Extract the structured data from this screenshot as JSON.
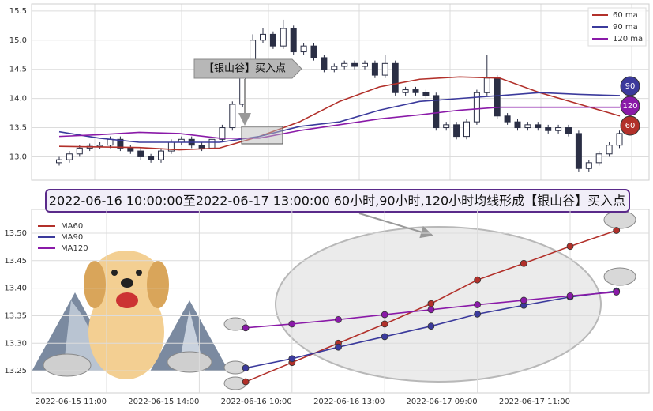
{
  "banner": "2022-06-16 10:00:00至2022-06-17 13:00:00 60小时,90小时,120小时均线形成【银山谷】买入点",
  "chart_data": [
    {
      "type": "candlestick",
      "annotation": "【银山谷】买入点",
      "ylim": [
        12.6,
        15.62
      ],
      "yticks": [
        {
          "value": 13,
          "label": "13.0"
        },
        13.5,
        {
          "value": 14,
          "label": "14.0"
        },
        14.5,
        {
          "value": 15,
          "label": "15.0"
        },
        15.5
      ],
      "grid": true,
      "legend": "upper right",
      "candles": {
        "open": [
          12.9,
          12.95,
          13.05,
          13.15,
          13.18,
          13.2,
          13.3,
          13.15,
          13.1,
          13.0,
          12.95,
          13.1,
          13.25,
          13.3,
          13.2,
          13.15,
          13.3,
          13.5,
          13.9,
          14.4,
          15.0,
          15.1,
          14.9,
          15.2,
          14.8,
          14.9,
          14.7,
          14.5,
          14.55,
          14.6,
          14.55,
          14.6,
          14.4,
          14.6,
          14.1,
          14.15,
          14.1,
          14.05,
          13.5,
          13.55,
          13.35,
          13.6,
          14.1,
          14.35,
          13.7,
          13.6,
          13.5,
          13.55,
          13.5,
          13.45,
          13.5,
          13.4,
          12.8,
          12.9,
          13.05,
          13.2
        ],
        "high": [
          13.0,
          13.1,
          13.2,
          13.23,
          13.25,
          13.35,
          13.35,
          13.2,
          13.15,
          13.05,
          13.15,
          13.3,
          13.35,
          13.35,
          13.25,
          13.35,
          13.55,
          13.95,
          14.45,
          15.1,
          15.2,
          15.15,
          15.35,
          15.25,
          14.95,
          14.95,
          14.75,
          14.6,
          14.65,
          14.65,
          14.65,
          14.65,
          14.75,
          14.65,
          14.2,
          14.2,
          14.15,
          14.1,
          13.6,
          13.6,
          13.65,
          14.15,
          14.75,
          14.4,
          13.75,
          13.65,
          13.6,
          13.6,
          13.55,
          13.55,
          13.55,
          13.45,
          12.95,
          13.1,
          13.25,
          13.45
        ],
        "low": [
          12.85,
          12.9,
          13.0,
          13.1,
          13.13,
          13.15,
          13.1,
          13.05,
          12.95,
          12.9,
          12.9,
          13.05,
          13.2,
          13.15,
          13.1,
          13.1,
          13.25,
          13.45,
          13.85,
          14.35,
          14.95,
          14.85,
          14.85,
          14.75,
          14.75,
          14.65,
          14.45,
          14.45,
          14.5,
          14.5,
          14.5,
          14.35,
          14.35,
          14.05,
          14.05,
          14.05,
          14.0,
          13.45,
          13.45,
          13.3,
          13.3,
          13.55,
          14.05,
          13.65,
          13.55,
          13.45,
          13.45,
          13.45,
          13.4,
          13.4,
          13.35,
          12.75,
          12.75,
          12.85,
          13.0,
          13.15
        ],
        "close": [
          12.95,
          13.05,
          13.15,
          13.18,
          13.2,
          13.3,
          13.15,
          13.1,
          13.0,
          12.95,
          13.1,
          13.25,
          13.3,
          13.2,
          13.15,
          13.3,
          13.5,
          13.9,
          14.4,
          15.0,
          15.1,
          14.9,
          15.2,
          14.8,
          14.9,
          14.7,
          14.5,
          14.55,
          14.6,
          14.55,
          14.6,
          14.4,
          14.6,
          14.1,
          14.15,
          14.1,
          14.05,
          13.5,
          13.55,
          13.35,
          13.6,
          14.1,
          14.35,
          13.7,
          13.6,
          13.5,
          13.55,
          13.5,
          13.45,
          13.5,
          13.4,
          12.8,
          12.9,
          13.05,
          13.2,
          13.4
        ]
      },
      "series": [
        {
          "name": "60 ma",
          "color": "#b2302a",
          "values": [
            13.18,
            13.17,
            13.16,
            13.12,
            13.15,
            13.35,
            13.6,
            13.95,
            14.2,
            14.33,
            14.37,
            14.35,
            14.1,
            13.9,
            13.7
          ]
        },
        {
          "name": "90 ma",
          "color": "#3b3a9c",
          "values": [
            13.43,
            13.32,
            13.25,
            13.25,
            13.25,
            13.35,
            13.52,
            13.6,
            13.8,
            13.95,
            14.0,
            14.05,
            14.1,
            14.07,
            14.05
          ]
        },
        {
          "name": "120 ma",
          "color": "#8a1aa8",
          "values": [
            13.35,
            13.38,
            13.42,
            13.4,
            13.32,
            13.32,
            13.45,
            13.55,
            13.65,
            13.72,
            13.8,
            13.85,
            13.85,
            13.85,
            13.85
          ]
        }
      ],
      "end_labels": [
        90,
        120,
        60
      ]
    },
    {
      "type": "line",
      "ylim": [
        13.21,
        13.543
      ],
      "yticks": [
        13.25,
        {
          "value": 13.3,
          "label": "13.30"
        },
        13.35,
        {
          "value": 13.4,
          "label": "13.40"
        },
        13.45,
        {
          "value": 13.5,
          "label": "13.50"
        }
      ],
      "grid": true,
      "legend": "upper left",
      "categories": [
        "2022-06-15 11:00",
        null,
        "2022-06-15 14:00",
        null,
        "2022-06-16 10:00",
        null,
        "2022-06-16 13:00",
        null,
        "2022-06-17 09:00",
        null,
        "2022-06-17 11:00",
        null
      ],
      "series": [
        {
          "name": "MA60",
          "color": "#b2302a",
          "values": [
            null,
            null,
            null,
            13.23,
            13.265,
            13.3,
            13.335,
            13.372,
            13.415,
            13.445,
            13.476,
            13.505
          ]
        },
        {
          "name": "MA90",
          "color": "#3b3a9c",
          "values": [
            null,
            null,
            null,
            13.255,
            13.272,
            13.293,
            13.312,
            13.331,
            13.353,
            13.369,
            13.384,
            13.395
          ]
        },
        {
          "name": "MA120",
          "color": "#8a1aa8",
          "values": [
            null,
            null,
            null,
            13.328,
            13.335,
            13.343,
            13.352,
            13.361,
            13.37,
            13.378,
            13.386,
            13.393
          ]
        }
      ]
    }
  ]
}
